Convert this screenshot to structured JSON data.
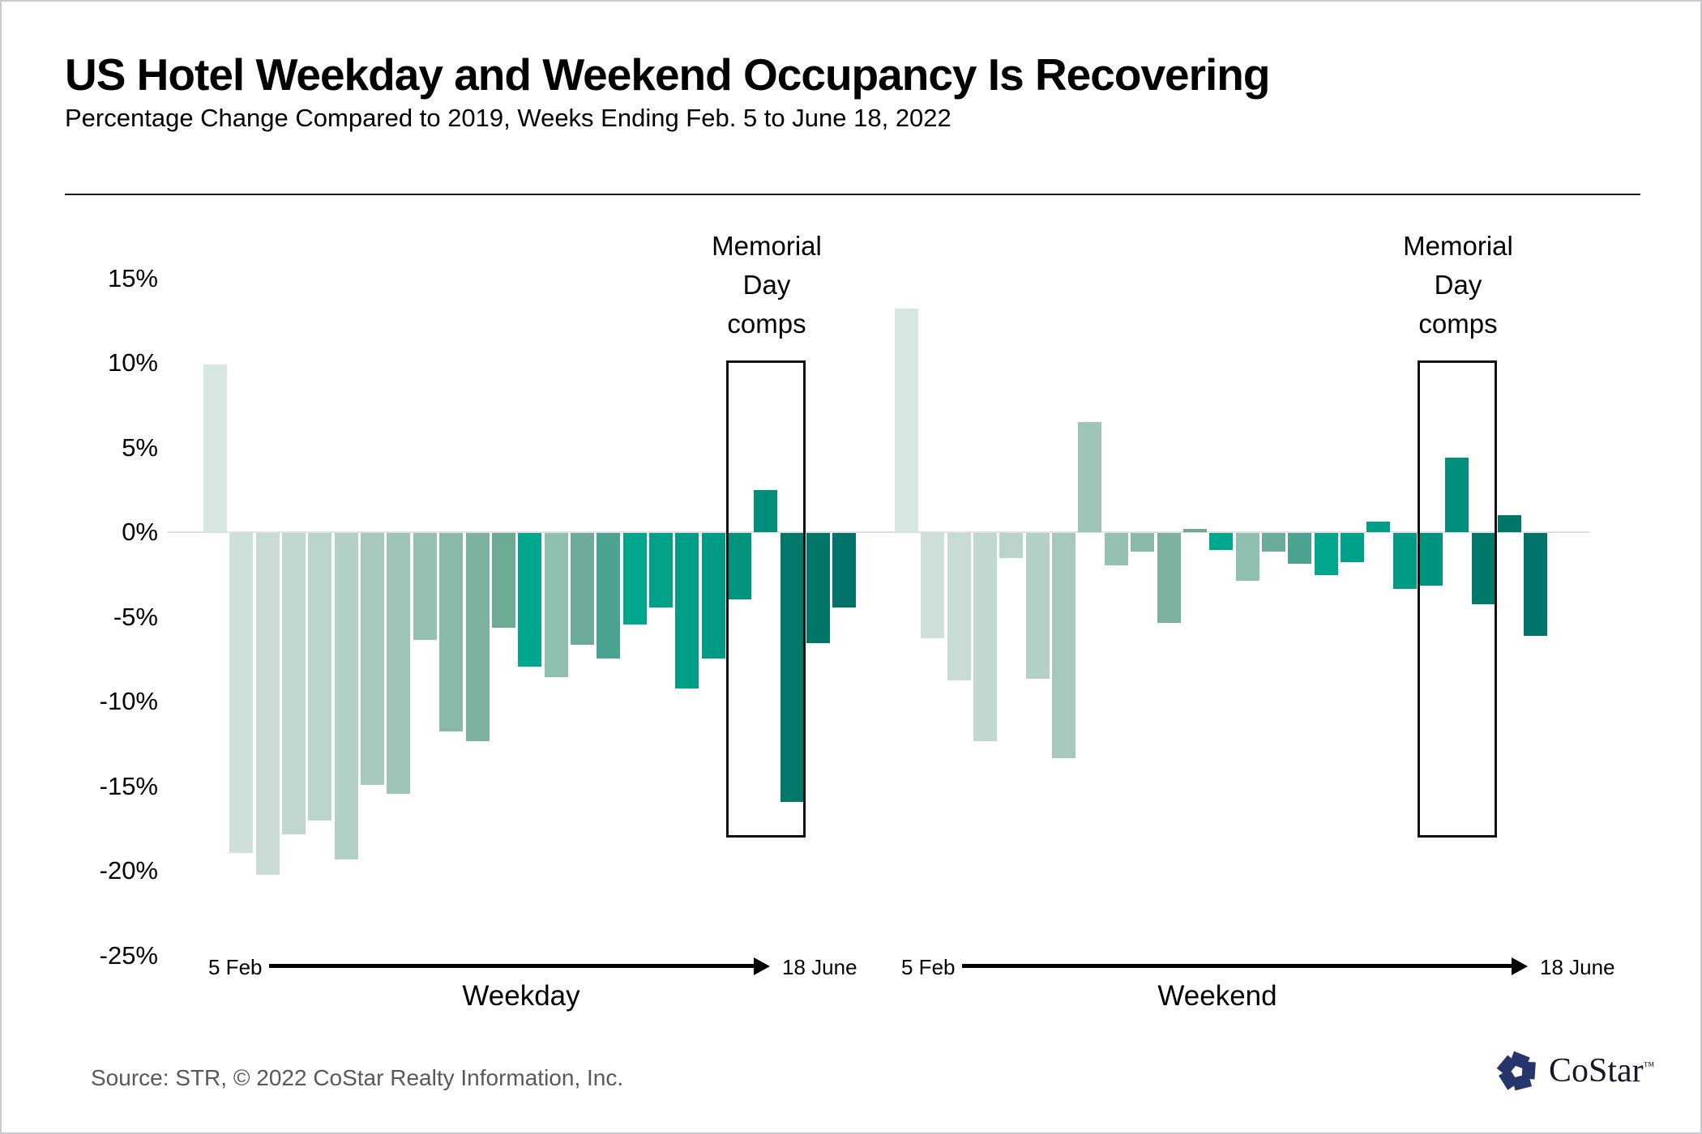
{
  "page": {
    "title": "US Hotel Weekday and Weekend Occupancy Is Recovering",
    "subtitle": "Percentage Change Compared to 2019, Weeks Ending Feb. 5 to June 18, 2022",
    "source_note": "Source: STR, © 2022  CoStar Realty Information, Inc."
  },
  "logo": {
    "name": "CoStar",
    "tm": "™",
    "icon_color": "#27356d"
  },
  "chart_data": {
    "type": "bar",
    "title": "US Hotel Weekday and Weekend Occupancy Is Recovering",
    "subtitle": "Percentage Change Compared to 2019, Weeks Ending Feb. 5 to June 18, 2022",
    "unit": "%",
    "ylim": [
      -25,
      15
    ],
    "grid": "zero-line-only",
    "legend_position": "none",
    "y_ticks": {
      "values": [
        15,
        10,
        5,
        0,
        -5,
        -10,
        -15,
        -20,
        -25
      ],
      "labels": [
        "15%",
        "10%",
        "5%",
        "0%",
        "-5%",
        "-10%",
        "-15%",
        "-20%",
        "-25%"
      ]
    },
    "x_axis": {
      "start_label": "5 Feb",
      "end_label": "18 June",
      "weeks_per_group": 25
    },
    "series": [
      {
        "name": "Weekday",
        "values": [
          9.9,
          -18.9,
          -20.2,
          -17.8,
          -17.0,
          -19.3,
          -14.9,
          -15.4,
          -6.3,
          -11.7,
          -12.3,
          -5.6,
          -7.9,
          -8.5,
          -6.6,
          -7.4,
          -5.4,
          -4.4,
          -9.2,
          -7.4,
          -3.9,
          2.5,
          -15.9,
          -6.5,
          -4.4
        ]
      },
      {
        "name": "Weekend",
        "values": [
          13.2,
          -6.2,
          -8.7,
          -12.3,
          -1.5,
          -8.6,
          -13.3,
          6.5,
          -1.9,
          -1.1,
          -5.3,
          0.2,
          -1.0,
          -2.8,
          -1.1,
          -1.8,
          -2.5,
          -1.7,
          0.6,
          -3.3,
          -3.1,
          4.4,
          -4.2,
          1.0,
          -6.1
        ]
      }
    ],
    "bar_colors_by_week": [
      "#d7e6e0",
      "#cfe0d9",
      "#c8dcd4",
      "#c1d8cf",
      "#bad4ca",
      "#b2d0c5",
      "#a6c9bb",
      "#9ec5b7",
      "#96c1b1",
      "#89b9a8",
      "#7bb19d",
      "#6daa93",
      "#00a78f",
      "#8fbfb0",
      "#6cab9a",
      "#4aa391",
      "#00a78d",
      "#00a189",
      "#009e87",
      "#009b84",
      "#00947e",
      "#008f7d",
      "#00796a",
      "#007669",
      "#00736a"
    ],
    "annotation": {
      "label_lines": [
        "Memorial",
        "Day",
        "comps"
      ],
      "applies_to_week_indices": [
        21,
        22,
        23
      ]
    }
  }
}
